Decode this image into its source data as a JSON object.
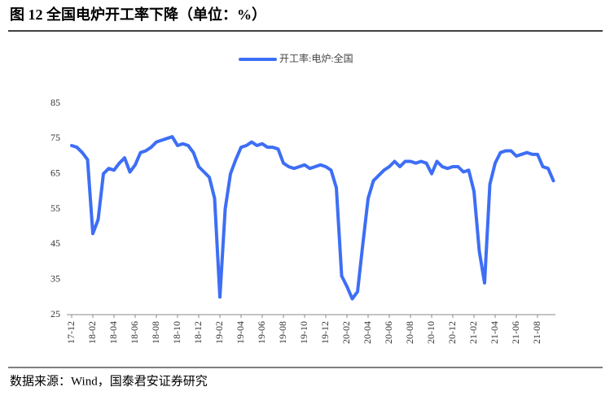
{
  "chart_data": {
    "type": "line",
    "title": "图 12 全国电炉开工率下降（单位：%）",
    "source": "数据来源：Wind，国泰君安证券研究",
    "categories": [
      "17-12",
      null,
      null,
      null,
      "18-02",
      null,
      null,
      null,
      "18-04",
      null,
      null,
      null,
      "18-06",
      null,
      null,
      null,
      "18-08",
      null,
      null,
      null,
      "18-10",
      null,
      null,
      null,
      "18-12",
      null,
      null,
      null,
      "19-02",
      null,
      null,
      null,
      "19-04",
      null,
      null,
      null,
      "19-06",
      null,
      null,
      null,
      "19-08",
      null,
      null,
      null,
      "19-10",
      null,
      null,
      null,
      "19-12",
      null,
      null,
      null,
      "20-02",
      null,
      null,
      null,
      "20-04",
      null,
      null,
      null,
      "20-06",
      null,
      null,
      null,
      "20-08",
      null,
      null,
      null,
      "20-10",
      null,
      null,
      null,
      "20-12",
      null,
      null,
      null,
      "21-02",
      null,
      null,
      null,
      "21-04",
      null,
      null,
      null,
      "21-06",
      null,
      null,
      null,
      "21-08",
      null,
      null,
      null
    ],
    "series": [
      {
        "name": "开工率:电炉:全国",
        "color": "#3d6ef5",
        "values": [
          73,
          72.5,
          71,
          69,
          48,
          52,
          65,
          66.5,
          66,
          68,
          69.5,
          65.5,
          67.5,
          71,
          71.5,
          72.5,
          74,
          74.5,
          75,
          75.5,
          73,
          73.5,
          73,
          71,
          67,
          65.5,
          64,
          58,
          30,
          55,
          65,
          69,
          72.5,
          73,
          74,
          73,
          73.5,
          72.5,
          72.5,
          72,
          68,
          67,
          66.5,
          67,
          67.5,
          66.5,
          67,
          67.5,
          67,
          66,
          61,
          36,
          33,
          29.5,
          31.5,
          45,
          58,
          63,
          64.5,
          66,
          67,
          68.5,
          67,
          68.5,
          68.5,
          68,
          68.5,
          68,
          65,
          68.5,
          67,
          66.5,
          67,
          67,
          65.5,
          66,
          60,
          43,
          34,
          62,
          68,
          71,
          71.5,
          71.5,
          70,
          70.5,
          71,
          70.5,
          70.5,
          67,
          66.5,
          63
        ]
      }
    ],
    "ylim": [
      25,
      85
    ],
    "yticks": [
      25,
      35,
      45,
      55,
      65,
      75,
      85
    ],
    "legend": "top"
  }
}
